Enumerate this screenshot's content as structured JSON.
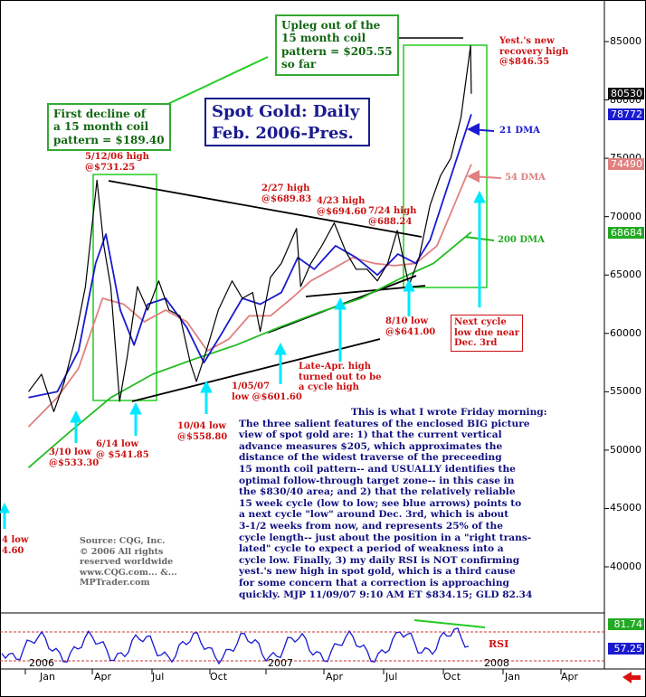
{
  "chart_data": {
    "type": "line",
    "title": "Spot Gold: Daily\nFeb. 2006-Pres.",
    "x_tick_labels": [
      "Jan",
      "2006",
      "Apr",
      "Jul",
      "Oct",
      "2007",
      "Apr",
      "Jul",
      "Oct",
      "Jan",
      "2008",
      "Apr"
    ],
    "y_tick_labels": [
      "85000",
      "80000",
      "75000",
      "70000",
      "65000",
      "60000",
      "55000",
      "50000",
      "45000",
      "40000"
    ],
    "ylim": [
      37000,
      87000
    ],
    "price_tags": [
      {
        "label": "80530",
        "value": 80530,
        "color": "#111111"
      },
      {
        "label": "78772",
        "value": 78772,
        "color": "#1a1ad0"
      },
      {
        "label": "74490",
        "value": 74490,
        "color": "#e08080"
      },
      {
        "label": "68684",
        "value": 68684,
        "color": "#22aa22"
      }
    ],
    "rsi_tags": [
      {
        "label": "81.74",
        "color": "#22aa22"
      },
      {
        "label": "57.25",
        "color": "#1a1ad0"
      }
    ],
    "series": [
      {
        "name": "Spot Gold",
        "color": "#000000",
        "points": [
          [
            "2006-02-01",
            55000
          ],
          [
            "2006-02-20",
            56500
          ],
          [
            "2006-03-10",
            53300
          ],
          [
            "2006-03-25",
            55800
          ],
          [
            "2006-04-10",
            59500
          ],
          [
            "2006-04-25",
            64000
          ],
          [
            "2006-05-12",
            73125
          ],
          [
            "2006-05-22",
            67500
          ],
          [
            "2006-06-01",
            64000
          ],
          [
            "2006-06-14",
            54185
          ],
          [
            "2006-06-25",
            58000
          ],
          [
            "2006-07-10",
            64000
          ],
          [
            "2006-07-25",
            62000
          ],
          [
            "2006-08-10",
            64500
          ],
          [
            "2006-08-25",
            62000
          ],
          [
            "2006-09-10",
            61500
          ],
          [
            "2006-09-25",
            57500
          ],
          [
            "2006-10-04",
            55880
          ],
          [
            "2006-10-20",
            58800
          ],
          [
            "2006-11-05",
            62000
          ],
          [
            "2006-11-25",
            64500
          ],
          [
            "2006-12-10",
            63000
          ],
          [
            "2006-12-25",
            63500
          ],
          [
            "2007-01-05",
            60160
          ],
          [
            "2007-01-20",
            64800
          ],
          [
            "2007-02-05",
            66000
          ],
          [
            "2007-02-27",
            68983
          ],
          [
            "2007-03-05",
            64000
          ],
          [
            "2007-03-20",
            66000
          ],
          [
            "2007-04-05",
            67500
          ],
          [
            "2007-04-23",
            69460
          ],
          [
            "2007-05-10",
            67000
          ],
          [
            "2007-05-25",
            65500
          ],
          [
            "2007-06-10",
            65500
          ],
          [
            "2007-06-25",
            64500
          ],
          [
            "2007-07-10",
            66000
          ],
          [
            "2007-07-24",
            68824
          ],
          [
            "2007-08-10",
            64100
          ],
          [
            "2007-08-25",
            66500
          ],
          [
            "2007-09-10",
            71000
          ],
          [
            "2007-09-25",
            73500
          ],
          [
            "2007-10-10",
            75000
          ],
          [
            "2007-10-25",
            78500
          ],
          [
            "2007-11-08",
            84655
          ],
          [
            "2007-11-09",
            80530
          ]
        ]
      },
      {
        "name": "21 DMA",
        "color": "#1a1ad0",
        "points": [
          [
            "2006-02-01",
            54500
          ],
          [
            "2006-03-15",
            55000
          ],
          [
            "2006-04-15",
            58500
          ],
          [
            "2006-05-10",
            66000
          ],
          [
            "2006-05-25",
            68500
          ],
          [
            "2006-06-15",
            62000
          ],
          [
            "2006-07-05",
            59000
          ],
          [
            "2006-07-25",
            62500
          ],
          [
            "2006-08-20",
            63000
          ],
          [
            "2006-09-20",
            60500
          ],
          [
            "2006-10-15",
            57500
          ],
          [
            "2006-11-10",
            60000
          ],
          [
            "2006-12-10",
            63000
          ],
          [
            "2007-01-05",
            62500
          ],
          [
            "2007-02-05",
            63500
          ],
          [
            "2007-03-01",
            66500
          ],
          [
            "2007-03-25",
            65500
          ],
          [
            "2007-04-25",
            67500
          ],
          [
            "2007-05-25",
            66500
          ],
          [
            "2007-06-25",
            65000
          ],
          [
            "2007-07-25",
            66800
          ],
          [
            "2007-08-20",
            66000
          ],
          [
            "2007-09-10",
            68000
          ],
          [
            "2007-10-05",
            72500
          ],
          [
            "2007-11-09",
            78772
          ]
        ]
      },
      {
        "name": "54 DMA",
        "color": "#e08080",
        "points": [
          [
            "2006-02-01",
            52000
          ],
          [
            "2006-03-15",
            54500
          ],
          [
            "2006-04-15",
            57000
          ],
          [
            "2006-05-20",
            63000
          ],
          [
            "2006-06-20",
            62500
          ],
          [
            "2006-07-20",
            61000
          ],
          [
            "2006-08-20",
            62000
          ],
          [
            "2006-09-20",
            61000
          ],
          [
            "2006-10-20",
            58500
          ],
          [
            "2006-11-20",
            59500
          ],
          [
            "2006-12-20",
            61500
          ],
          [
            "2007-01-20",
            61500
          ],
          [
            "2007-02-20",
            63000
          ],
          [
            "2007-03-20",
            64500
          ],
          [
            "2007-04-20",
            65500
          ],
          [
            "2007-05-20",
            66500
          ],
          [
            "2007-06-20",
            66000
          ],
          [
            "2007-07-20",
            65800
          ],
          [
            "2007-08-20",
            66000
          ],
          [
            "2007-09-20",
            67500
          ],
          [
            "2007-10-15",
            71000
          ],
          [
            "2007-11-09",
            74490
          ]
        ]
      },
      {
        "name": "200 DMA",
        "color": "#22bb22",
        "points": [
          [
            "2006-02-01",
            48500
          ],
          [
            "2006-04-01",
            51500
          ],
          [
            "2006-06-01",
            54500
          ],
          [
            "2006-08-01",
            56500
          ],
          [
            "2006-10-01",
            57800
          ],
          [
            "2006-12-01",
            59000
          ],
          [
            "2007-02-01",
            60500
          ],
          [
            "2007-04-01",
            61800
          ],
          [
            "2007-06-01",
            63000
          ],
          [
            "2007-08-01",
            64800
          ],
          [
            "2007-09-15",
            66000
          ],
          [
            "2007-11-09",
            68684
          ]
        ]
      }
    ]
  },
  "dma_labels": {
    "d21": "21 DMA",
    "d54": "54 DMA",
    "d200": "200 DMA"
  },
  "title": "Spot Gold: Daily\nFeb. 2006-Pres.",
  "boxes": {
    "upleg": "Upleg out of the\n15 month coil\npattern = $205.55\nso far",
    "first_decline": "First decline of\na 15 month coil\npattern = $189.40"
  },
  "annotations": {
    "recovery_high": "Yest.'s new\nrecovery high\n@$846.55",
    "high_0512": "5/12/06 high\n@$731.25",
    "high_0227": "2/27 high\n@$689.83",
    "high_0423": "4/23 high\n@$694.60",
    "high_0724": "7/24 high\n@688.24",
    "next_cycle": "Next cycle\nlow due near\nDec. 3rd",
    "low_0810": "8/10 low\n@$641.00",
    "late_apr": "Late-Apr. high\nturned out to be\na cycle high",
    "low_0105": "1/05/07\nlow @$601.60",
    "low_1004": "10/04 low\n@$558.80",
    "low_0614": "6/14 low\n@ $541.85",
    "low_0310": "3/10 low\n@$533.30",
    "edge_low": "4 low\n4.60"
  },
  "commentary": {
    "heading": "This is what I wrote Friday morning:",
    "body": "The three salient features of the enclosed BIG picture\nview of spot gold are: 1) that the current vertical\nadvance measures $205, which approximates the\ndistance of the widest traverse of the preceeding\n15 month coil pattern-- and USUALLY identifies the\noptimal follow-through target zone-- in this case in\nthe $830/40 area; and 2) that the relatively reliable\n15 week cycle (low to low; see blue arrows) points to\na next cycle \"low\" around Dec. 3rd, which is about\n3-1/2 weeks from now, and represents 25% of the\ncycle length-- just about the position in a \"right trans-\nlated\" cycle to expect a period of weakness into a\ncycle low. Finally, 3) my daily RSI is NOT confirming\nyest.'s new high in spot gold, which is a third cause\nfor some concern that a correction is approaching\nquickly. MJP 11/09/07 9:10 AM ET  $834.15; GLD 82.34"
  },
  "source": "Source: CQG, Inc.\n© 2006 All rights\nreserved worldwide\nwww.CQG.com... &...\nMPTrader.com",
  "rsi": {
    "label": "RSI"
  },
  "colors": {
    "price": "#000000",
    "dma21": "#1a1ad0",
    "dma54": "#e08080",
    "dma200": "#22bb22",
    "annotation_red": "#cc1111",
    "box_green": "#33aa33",
    "arrow_cyan": "#00e0ff"
  },
  "icons": {
    "nav": "red-left-arrow-icon"
  }
}
